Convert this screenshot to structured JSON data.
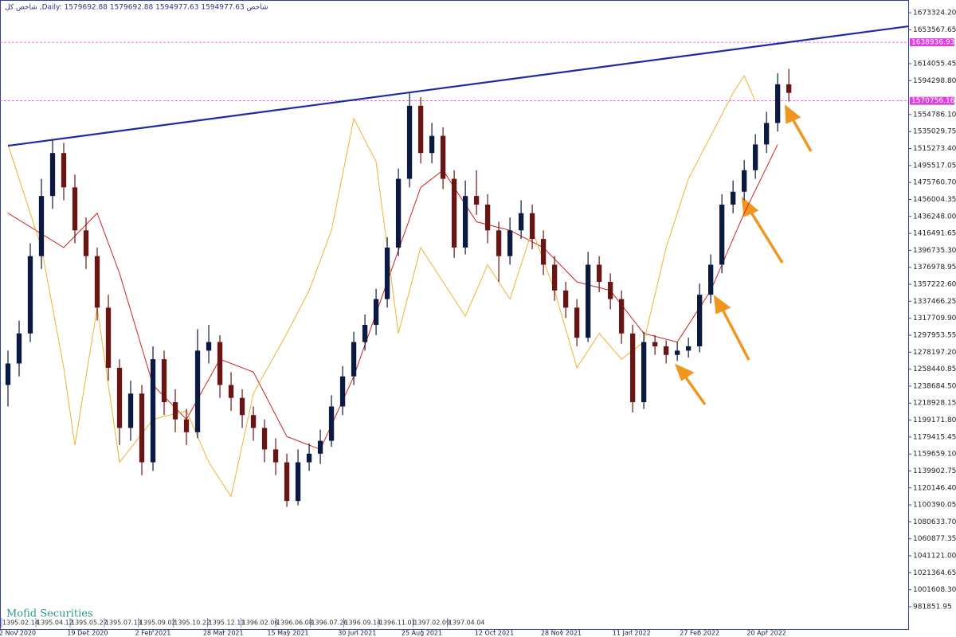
{
  "chart_data": {
    "type": "candlestick",
    "info": "شاخص کل ,Daily:  1579692.88 1579692.88 1594977.63 1594977.63  شاخص",
    "watermark": "Mofid Securities",
    "up_color": "#0b1a40",
    "down_color": "#6a1414",
    "categories": [
      null,
      null,
      null,
      null,
      null,
      null,
      null,
      null,
      null,
      null,
      null,
      null,
      null,
      null,
      null,
      null,
      null,
      null,
      null,
      null,
      null,
      null,
      null,
      null,
      null,
      null,
      null,
      null,
      null,
      null,
      null,
      null,
      null,
      null,
      null,
      null,
      null,
      null,
      null,
      null,
      null,
      null,
      null,
      null,
      null,
      null,
      null,
      null,
      null,
      null,
      null,
      null,
      null,
      null,
      null,
      null,
      null,
      null,
      null,
      null,
      null,
      null,
      null,
      null,
      null,
      null,
      null,
      null,
      null,
      null,
      null
    ],
    "open": [
      1240000,
      1265000,
      1300000,
      1390000,
      1460000,
      1510000,
      1470000,
      1420000,
      1390000,
      1330000,
      1260000,
      1190000,
      1230000,
      1150000,
      1270000,
      1220000,
      1200000,
      1185000,
      1280000,
      1290000,
      1240000,
      1225000,
      1205000,
      1190000,
      1165000,
      1150000,
      1105000,
      1150000,
      1160000,
      1175000,
      1215000,
      1250000,
      1290000,
      1310000,
      1340000,
      1400000,
      1480000,
      1565000,
      1510000,
      1530000,
      1480000,
      1400000,
      1460000,
      1450000,
      1420000,
      1390000,
      1420000,
      1440000,
      1410000,
      1380000,
      1350000,
      1330000,
      1295000,
      1380000,
      1360000,
      1340000,
      1300000,
      1220000,
      1290000,
      1285000,
      1275000,
      1280000,
      1285000,
      1345000,
      1380000,
      1450000,
      1465000,
      1490000,
      1520000,
      1545000,
      1590000
    ],
    "high": [
      1280000,
      1315000,
      1405000,
      1480000,
      1525000,
      1522000,
      1485000,
      1435000,
      1400000,
      1345000,
      1270000,
      1245000,
      1240000,
      1285000,
      1280000,
      1235000,
      1212000,
      1305000,
      1310000,
      1298000,
      1255000,
      1235000,
      1215000,
      1200000,
      1178000,
      1160000,
      1165000,
      1172000,
      1188000,
      1228000,
      1262000,
      1302000,
      1322000,
      1352000,
      1412000,
      1492000,
      1580000,
      1575000,
      1545000,
      1540000,
      1490000,
      1478000,
      1490000,
      1462000,
      1430000,
      1435000,
      1455000,
      1450000,
      1420000,
      1390000,
      1360000,
      1340000,
      1395000,
      1390000,
      1370000,
      1350000,
      1310000,
      1302000,
      1298000,
      1292000,
      1290000,
      1295000,
      1358000,
      1392000,
      1462000,
      1478000,
      1502000,
      1532000,
      1558000,
      1603000,
      1608000
    ],
    "low": [
      1215000,
      1250000,
      1290000,
      1375000,
      1445000,
      1455000,
      1405000,
      1375000,
      1315000,
      1245000,
      1170000,
      1175000,
      1135000,
      1140000,
      1205000,
      1185000,
      1170000,
      1178000,
      1265000,
      1225000,
      1210000,
      1190000,
      1175000,
      1150000,
      1135000,
      1098000,
      1100000,
      1140000,
      1148000,
      1168000,
      1205000,
      1240000,
      1280000,
      1298000,
      1330000,
      1390000,
      1470000,
      1498000,
      1498000,
      1468000,
      1388000,
      1392000,
      1438000,
      1405000,
      1360000,
      1380000,
      1410000,
      1398000,
      1368000,
      1338000,
      1318000,
      1285000,
      1290000,
      1348000,
      1328000,
      1288000,
      1208000,
      1212000,
      1275000,
      1265000,
      1268000,
      1272000,
      1278000,
      1335000,
      1370000,
      1440000,
      1455000,
      1480000,
      1510000,
      1535000,
      1570000
    ],
    "close": [
      1265000,
      1300000,
      1390000,
      1460000,
      1510000,
      1470000,
      1420000,
      1390000,
      1330000,
      1260000,
      1190000,
      1230000,
      1150000,
      1270000,
      1220000,
      1200000,
      1185000,
      1280000,
      1290000,
      1240000,
      1225000,
      1205000,
      1190000,
      1165000,
      1150000,
      1105000,
      1150000,
      1160000,
      1175000,
      1215000,
      1250000,
      1290000,
      1310000,
      1340000,
      1400000,
      1480000,
      1565000,
      1510000,
      1530000,
      1480000,
      1400000,
      1460000,
      1450000,
      1420000,
      1390000,
      1420000,
      1440000,
      1410000,
      1380000,
      1350000,
      1330000,
      1295000,
      1380000,
      1360000,
      1340000,
      1300000,
      1220000,
      1290000,
      1285000,
      1275000,
      1280000,
      1285000,
      1345000,
      1380000,
      1450000,
      1465000,
      1490000,
      1520000,
      1545000,
      1590000,
      1580000
    ],
    "series": [
      {
        "color": "#d42020",
        "x": [
          0,
          5,
          8,
          10,
          13,
          16,
          19,
          22,
          25,
          28,
          31,
          34,
          37,
          39,
          42,
          45,
          48,
          51,
          54,
          57,
          60,
          63,
          66,
          69
        ],
        "values": [
          1440000,
          1400000,
          1440000,
          1370000,
          1240000,
          1200000,
          1270000,
          1255000,
          1180000,
          1165000,
          1250000,
          1360000,
          1470000,
          1490000,
          1430000,
          1420000,
          1400000,
          1360000,
          1350000,
          1300000,
          1290000,
          1350000,
          1440000,
          1520000
        ]
      },
      {
        "color": "#f2b233",
        "x": [
          0,
          3,
          5,
          6,
          8,
          10,
          13,
          16,
          18,
          20,
          22,
          25,
          27,
          29,
          31,
          33,
          35,
          37,
          39,
          41,
          43,
          45,
          47,
          49,
          51,
          53,
          55,
          57,
          59,
          61,
          63,
          65,
          66,
          67
        ],
        "values": [
          1520000,
          1400000,
          1260000,
          1170000,
          1330000,
          1150000,
          1200000,
          1210000,
          1150000,
          1110000,
          1230000,
          1300000,
          1350000,
          1420000,
          1550000,
          1500000,
          1300000,
          1400000,
          1360000,
          1320000,
          1380000,
          1340000,
          1420000,
          1350000,
          1260000,
          1300000,
          1270000,
          1290000,
          1400000,
          1480000,
          1530000,
          1580000,
          1600000,
          1570000
        ]
      },
      {
        "color": "#1c2aa8",
        "x": [
          0,
          80.7
        ],
        "values": [
          1518500,
          1657500
        ]
      }
    ],
    "levels": [
      {
        "value": 1638936.93,
        "label": "1638936.93"
      },
      {
        "value": 1570756.16,
        "label": "1570756.16"
      }
    ],
    "level_color": "#e040e0",
    "xlim": [
      -0.714,
      80.7
    ],
    "ylim": [
      955900,
      1686300
    ],
    "xticks": [
      {
        "value": 0.86,
        "label": "2 Nov 2020"
      },
      {
        "value": 7.14,
        "label": "19 Dec 2020"
      },
      {
        "value": 13,
        "label": "2 Feb 2021"
      },
      {
        "value": 19.3,
        "label": "28 Mar 2021"
      },
      {
        "value": 25.1,
        "label": "15 May 2021"
      },
      {
        "value": 31.3,
        "label": "30 Jun 2021"
      },
      {
        "value": 37.1,
        "label": "25 Aug 2021"
      },
      {
        "value": 43.6,
        "label": "12 Oct 2021"
      },
      {
        "value": 49.6,
        "label": "28 Nov 2021"
      },
      {
        "value": 55.9,
        "label": "11 Jan 2022"
      },
      {
        "value": 62,
        "label": "27 Feb 2022"
      },
      {
        "value": 68,
        "label": "20 Apr 2022"
      }
    ],
    "xticks2": [
      {
        "value": -0.57,
        "label": "1395.02.14"
      },
      {
        "value": 2.5,
        "label": "1395.04.12"
      },
      {
        "value": 5.57,
        "label": "1395.05.27"
      },
      {
        "value": 8.64,
        "label": "1395.07.13"
      },
      {
        "value": 11.7,
        "label": "1395.09.02"
      },
      {
        "value": 14.8,
        "label": "1395.10.22"
      },
      {
        "value": 17.9,
        "label": "1395.12.11"
      },
      {
        "value": 20.9,
        "label": "1396.02.06"
      },
      {
        "value": 24,
        "label": "1396.06.08"
      },
      {
        "value": 27.1,
        "label": "1396.07.26"
      },
      {
        "value": 30.1,
        "label": "1396.09.14"
      },
      {
        "value": 33.2,
        "label": "1396.11.01"
      },
      {
        "value": 36.3,
        "label": "1397.02.09"
      },
      {
        "value": 39.4,
        "label": "1397.04.04"
      }
    ],
    "yticks": [
      {
        "value": 1673324.2,
        "label": "1673324.20"
      },
      1653567.65,
      1614055.45,
      {
        "value": 1594298.8,
        "label": "1594298.80"
      },
      {
        "value": 1554786.1,
        "label": "1554786.10"
      },
      1535029.75,
      {
        "value": 1515273.4,
        "label": "1515273.40"
      },
      1495517.05,
      {
        "value": 1475760.7,
        "label": "1475760.70"
      },
      1456004.35,
      {
        "value": 1436248,
        "label": "1436248.00"
      },
      1416491.65,
      {
        "value": 1396735.3,
        "label": "1396735.30"
      },
      1376978.95,
      {
        "value": 1357222.6,
        "label": "1357222.60"
      },
      1337466.25,
      {
        "value": 1317709.9,
        "label": "1317709.90"
      },
      1297953.55,
      {
        "value": 1278197.2,
        "label": "1278197.20"
      },
      1258440.85,
      {
        "value": 1238684.5,
        "label": "1238684.50"
      },
      1218928.15,
      {
        "value": 1199171.8,
        "label": "1199171.80"
      },
      1179415.45,
      {
        "value": 1159659.1,
        "label": "1159659.10"
      },
      1139902.75,
      {
        "value": 1120146.4,
        "label": "1120146.40"
      },
      1100390.05,
      {
        "value": 1080633.7,
        "label": "1080633.70"
      },
      1060877.35,
      {
        "value": 1041121,
        "label": "1041121.00"
      },
      1021364.65,
      {
        "value": 1001608.3,
        "label": "1001608.30"
      },
      981851.95
    ]
  }
}
